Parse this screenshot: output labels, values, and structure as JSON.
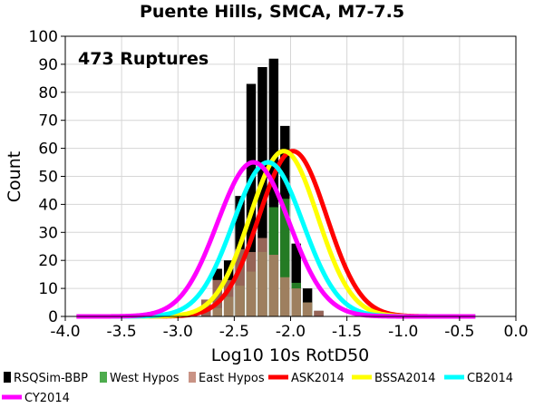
{
  "chart_data": {
    "type": "bar",
    "title": "Puente Hills, SMCA, M7-7.5",
    "annotation": "473 Ruptures",
    "xlabel": "Log10 10s RotD50",
    "ylabel": "Count",
    "xlim": [
      -4.0,
      0.0
    ],
    "ylim": [
      0,
      100
    ],
    "x_ticks": [
      "-4.0",
      "-3.5",
      "-3.0",
      "-2.5",
      "-2.0",
      "-1.5",
      "-1.0",
      "-0.5",
      "0.0"
    ],
    "y_ticks": [
      "0",
      "10",
      "20",
      "30",
      "40",
      "50",
      "60",
      "70",
      "80",
      "90",
      "100"
    ],
    "grid": true,
    "legend_position": "bottom",
    "bin_width": 0.1,
    "bin_centers": [
      -2.85,
      -2.75,
      -2.65,
      -2.55,
      -2.45,
      -2.35,
      -2.25,
      -2.15,
      -2.05,
      -1.95,
      -1.85,
      -1.75
    ],
    "histograms": [
      {
        "name": "RSQSim-BBP",
        "color": "#000000",
        "values": [
          0,
          6,
          17,
          20,
          43,
          83,
          89,
          92,
          68,
          26,
          10,
          2
        ]
      },
      {
        "name": "West Hypos",
        "color": "#2e9e2e",
        "values": [
          0,
          0,
          3,
          7,
          11,
          16,
          23,
          39,
          42,
          12,
          5,
          0
        ]
      },
      {
        "name": "East Hypos",
        "color": "#c08070",
        "values": [
          0,
          6,
          13,
          13,
          24,
          23,
          28,
          22,
          14,
          10,
          5,
          2
        ]
      }
    ],
    "series": [
      {
        "name": "ASK2014",
        "color": "#ff0000",
        "mean": -1.98,
        "sd": 0.3,
        "peak": 59
      },
      {
        "name": "BSSA2014",
        "color": "#ffff00",
        "mean": -2.06,
        "sd": 0.3,
        "peak": 59
      },
      {
        "name": "CB2014",
        "color": "#00ffff",
        "mean": -2.2,
        "sd": 0.31,
        "peak": 55
      },
      {
        "name": "CY2014",
        "color": "#ff00ff",
        "mean": -2.33,
        "sd": 0.32,
        "peak": 55
      }
    ]
  }
}
